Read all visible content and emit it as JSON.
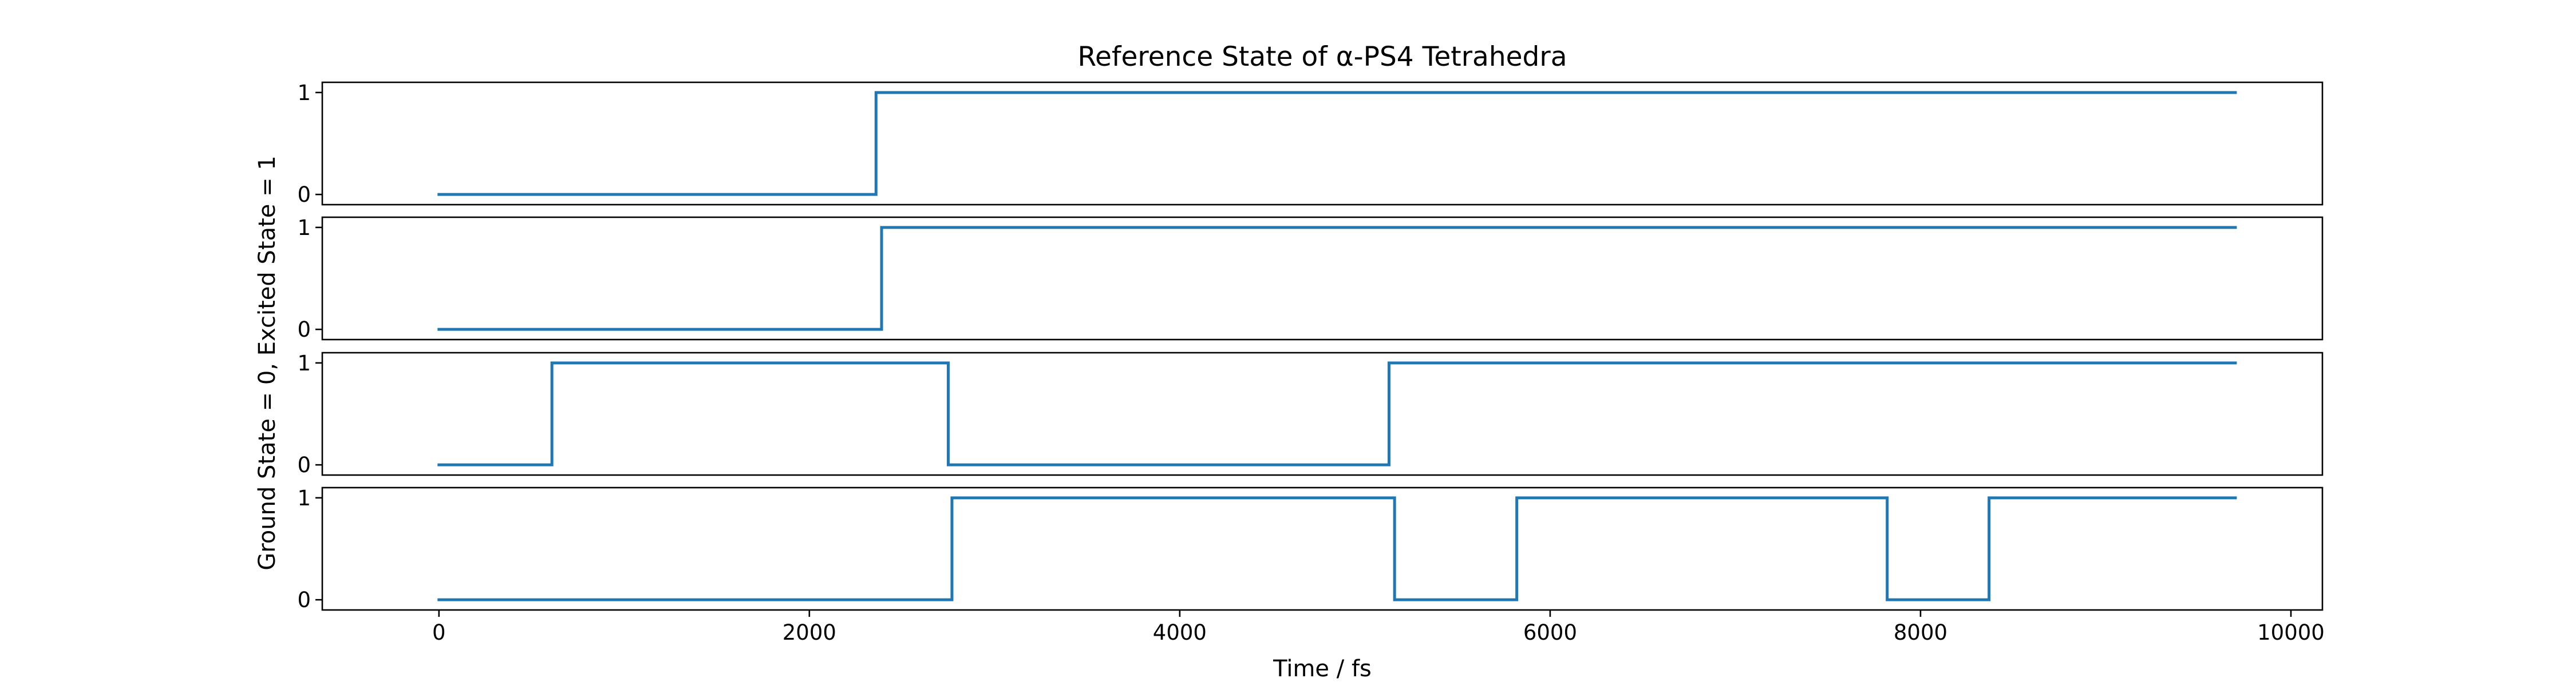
{
  "chart_data": {
    "type": "line",
    "subtype": "step",
    "title": "Reference State of α-PS4 Tetrahedra",
    "xlabel": "Time / fs",
    "ylabel": "Ground State = 0, Excited State = 1",
    "xlim": [
      -630,
      10170
    ],
    "ylim": [
      -0.1,
      1.1
    ],
    "xticks": [
      0,
      2000,
      4000,
      6000,
      8000,
      10000
    ],
    "xtick_labels": [
      "0",
      "2000",
      "4000",
      "6000",
      "8000",
      "10000"
    ],
    "yticks": [
      0,
      1
    ],
    "ytick_labels": [
      "0",
      "1"
    ],
    "grid": false,
    "line_color": "#1f77b4",
    "panels": [
      {
        "x": [
          0,
          2360,
          2360,
          9700
        ],
        "y": [
          0,
          0,
          1,
          1
        ]
      },
      {
        "x": [
          0,
          2390,
          2390,
          9700
        ],
        "y": [
          0,
          0,
          1,
          1
        ]
      },
      {
        "x": [
          0,
          610,
          610,
          2750,
          2750,
          5130,
          5130,
          9700
        ],
        "y": [
          0,
          0,
          1,
          1,
          0,
          0,
          1,
          1
        ]
      },
      {
        "x": [
          0,
          2770,
          2770,
          5160,
          5160,
          5820,
          5820,
          7820,
          7820,
          8370,
          8370,
          9700
        ],
        "y": [
          0,
          0,
          1,
          1,
          0,
          0,
          1,
          1,
          0,
          0,
          1,
          1
        ]
      }
    ]
  }
}
